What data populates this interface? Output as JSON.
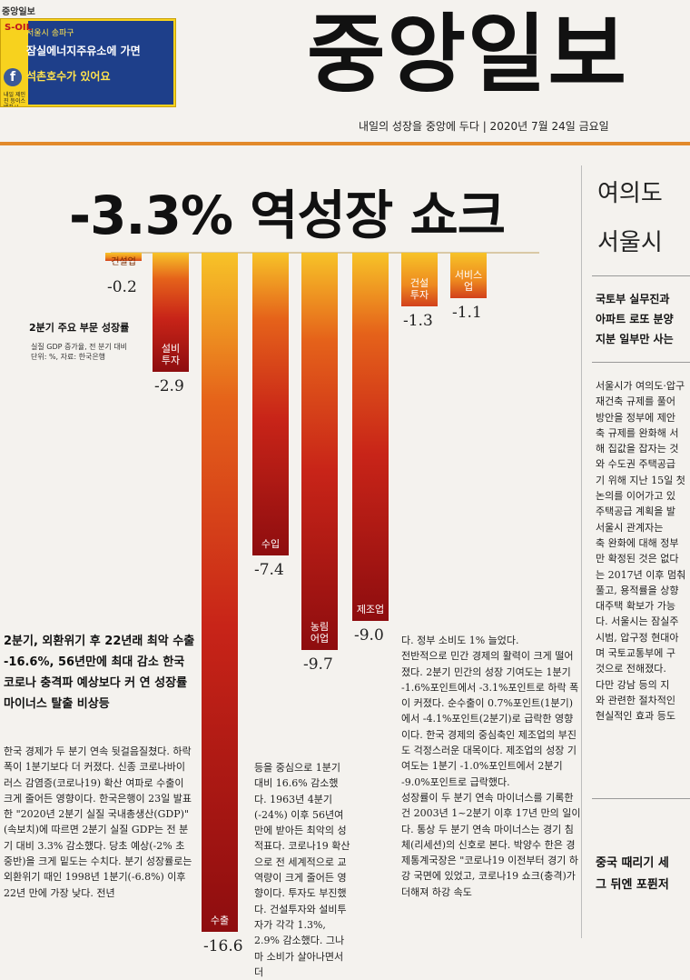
{
  "masthead": {
    "mini": "중앙일보",
    "title": "중앙일보",
    "tagline": "내일의 성장을 중앙에 두다  |  2020년 7월 24일 금요일"
  },
  "ad": {
    "logo": "S-OIL",
    "line1": "서울시 송파구",
    "line2": "잠실에너지주유소에 가면",
    "line3": "석촌호수가 있어요",
    "small": "내일 제인진 등이스배하시"
  },
  "headline": "-3.3% 역성장 쇼크",
  "legend": {
    "title": "2분기 주요 부문 성장률",
    "sub1": "실질 GDP 증가율, 전 분기 대비",
    "sub2": "단위: %, 자료: 한국은행"
  },
  "chart_data": {
    "type": "bar",
    "title": "2분기 주요 부문 성장률",
    "categories": [
      "건설업",
      "설비투자",
      "수출",
      "수입",
      "농림어업",
      "제조업",
      "건설투자",
      "서비스업"
    ],
    "display_labels": [
      "건설업",
      "설비\n투자",
      "수출",
      "수입",
      "농림\n어업",
      "제조업",
      "건설\n투자",
      "서비스\n업"
    ],
    "value_labels": [
      "-0.2",
      "-2.9",
      "-16.6",
      "-7.4",
      "-9.7",
      "-9.0",
      "-1.3",
      "-1.1"
    ],
    "values": [
      -0.2,
      -2.9,
      -16.6,
      -7.4,
      -9.7,
      -9.0,
      -1.3,
      -1.1
    ],
    "ylabel": "%"
  },
  "article": {
    "lead": "2분기, 외환위기 후 22년래 최악 수출 -16.6%, 56년만에 최대 감소 한국 코로나 충격파 예상보다 커 연 성장률 마이너스 탈출 비상등",
    "col1": [
      "한국 경제가 두 분기 연속 뒷걸음질쳤다. 하락 폭이 1분기보다 더 커졌다. 신종 코로나바이러스 감염증(코로나19) 확산 여파로 수출이 크게 줄어든 영향이다. 한국은행이 23일 발표한 \"2020년 2분기 실질 국내총생산(GDP)\"(속보치)에 따르면 2분기 실질 GDP는 전 분기 대비 3.3% 감소했다. 당초 예상(-2% 초중반)을 크게 밑도는 수치다. 분기 성장률로는 외환위기 때인 1998년 1분기(-6.8%) 이후 22년 만에 가장 낮다. 전년"
    ],
    "col2": [
      "등을 중심으로 1분기 대비 16.6% 감소했다. 1963년 4분기(-24%) 이후 56년여 만에 받아든 최악의 성적표다. 코로나19 확산으로 전 세계적으로 교역량이 크게 줄어든 영향이다. 투자도 부진했다. 건설투자와 설비투자가 각각 1.3%, 2.9% 감소했다. 그나마 소비가 살아나면서 더"
    ],
    "col3": [
      "다. 정부 소비도 1% 늘었다.",
      "전반적으로 민간 경제의 활력이 크게 떨어졌다. 2분기 민간의 성장 기여도는 1분기 -1.6%포인트에서 -3.1%포인트로 하락 폭이 커졌다. 순수출이 0.7%포인트(1분기)에서 -4.1%포인트(2분기)로 급락한 영향이다. 한국 경제의 중심축인 제조업의 부진도 걱정스러운 대목이다. 제조업의 성장 기여도는 1분기 -1.0%포인트에서 2분기 -9.0%포인트로 급락했다.",
      "성장률이 두 분기 연속 마이너스를 기록한 건 2003년 1~2분기 이후 17년 만의 일이다. 통상 두 분기 연속 마이너스는 경기 침체(리세션)의 신호로 본다. 박양수 한은 경제통계국장은 \"코로나19 이전부터 경기 하강 국면에 있었고, 코로나19 쇼크(충격)가 더해져 하강 속도"
    ]
  },
  "right": {
    "h1": "여의도",
    "h2": "서울시",
    "sub": [
      "국토부 실무진과",
      "아파트 로또 분양",
      "지분 일부만 사는"
    ],
    "body": [
      "서울시가 여의도·압구",
      "재건축 규제를 풀어",
      "방안을 정부에 제안",
      "축 규제를 완화해 서",
      "해 집값을 잡자는 것",
      "와 수도권 주택공급",
      "기 위해 지난 15일 첫",
      "논의를 이어가고 있",
      "주택공급 계획을 발",
      "서울시 관계자는",
      "축 완화에 대해 정부",
      "만 확정된 것은 없다",
      "는 2017년 이후 멈춰",
      "풀고, 용적률을 상향",
      "대주택 확보가 가능",
      "다. 서울시는 잠실주",
      "시범, 압구정 현대아",
      "며 국토교통부에 구",
      "것으로 전해졌다.",
      "다만 강남 등의 지",
      "와 관련한 절차적인",
      "현실적인 효과 등도"
    ],
    "bottom1": "중국 때리기 세",
    "bottom2": "그 뒤엔 포퓐저"
  }
}
